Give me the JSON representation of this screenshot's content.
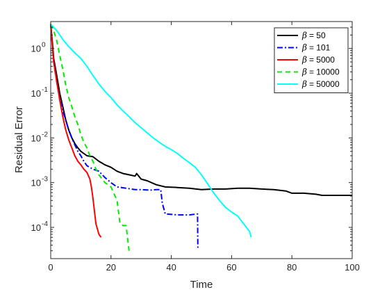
{
  "chart_data": {
    "type": "line",
    "xlabel": "Time",
    "ylabel": "Residual Error",
    "xlim": [
      0,
      100
    ],
    "ylim": [
      2e-05,
      4
    ],
    "yscale": "log",
    "grid": false,
    "legend_position": "top-right",
    "x_ticks": [
      0,
      20,
      40,
      60,
      80,
      100
    ],
    "y_ticks": [
      {
        "value": 0.0001,
        "base": "10",
        "exp": "-4"
      },
      {
        "value": 0.001,
        "base": "10",
        "exp": "-3"
      },
      {
        "value": 0.01,
        "base": "10",
        "exp": "-2"
      },
      {
        "value": 0.1,
        "base": "10",
        "exp": "-1"
      },
      {
        "value": 1,
        "base": "10",
        "exp": "0"
      }
    ],
    "series": [
      {
        "name": "β = 50",
        "legend_symbol": "β",
        "legend_value": "= 50",
        "color": "#000000",
        "dash": "",
        "points": [
          [
            0,
            3.5
          ],
          [
            0.5,
            1.5
          ],
          [
            1,
            0.6
          ],
          [
            2,
            0.25
          ],
          [
            3,
            0.1
          ],
          [
            4,
            0.05
          ],
          [
            5,
            0.025
          ],
          [
            6,
            0.015
          ],
          [
            7,
            0.01
          ],
          [
            8,
            0.0075
          ],
          [
            9,
            0.006
          ],
          [
            10,
            0.005
          ],
          [
            12,
            0.004
          ],
          [
            14,
            0.0038
          ],
          [
            16,
            0.003
          ],
          [
            18,
            0.0025
          ],
          [
            20,
            0.0022
          ],
          [
            22,
            0.0018
          ],
          [
            24,
            0.0016
          ],
          [
            26,
            0.0015
          ],
          [
            28,
            0.0014
          ],
          [
            28.5,
            0.0016
          ],
          [
            30,
            0.0012
          ],
          [
            32,
            0.0011
          ],
          [
            35,
            0.0009
          ],
          [
            38,
            0.0008
          ],
          [
            42,
            0.00078
          ],
          [
            46,
            0.00075
          ],
          [
            50,
            0.0007
          ],
          [
            54,
            0.00072
          ],
          [
            58,
            0.00072
          ],
          [
            62,
            0.00075
          ],
          [
            66,
            0.00075
          ],
          [
            70,
            0.00072
          ],
          [
            74,
            0.0007
          ],
          [
            78,
            0.00065
          ],
          [
            80,
            0.00058
          ],
          [
            84,
            0.00058
          ],
          [
            88,
            0.00055
          ],
          [
            90,
            0.00052
          ],
          [
            95,
            0.00052
          ],
          [
            100,
            0.00052
          ]
        ]
      },
      {
        "name": "β = 101",
        "legend_symbol": "β",
        "legend_value": "= 101",
        "color": "#0000ff",
        "dash": "8,3,2,3",
        "points": [
          [
            0,
            3.5
          ],
          [
            0.5,
            1.2
          ],
          [
            1,
            0.5
          ],
          [
            2,
            0.18
          ],
          [
            3,
            0.08
          ],
          [
            4,
            0.04
          ],
          [
            5,
            0.025
          ],
          [
            6,
            0.015
          ],
          [
            7,
            0.01
          ],
          [
            8,
            0.007
          ],
          [
            9,
            0.005
          ],
          [
            10,
            0.004
          ],
          [
            11,
            0.003
          ],
          [
            12,
            0.0024
          ],
          [
            14,
            0.002
          ],
          [
            16,
            0.0018
          ],
          [
            18,
            0.0013
          ],
          [
            20,
            0.001
          ],
          [
            22,
            0.0008
          ],
          [
            25,
            0.00075
          ],
          [
            28,
            0.0007
          ],
          [
            30,
            0.0007
          ],
          [
            33,
            0.00068
          ],
          [
            35,
            0.0007
          ],
          [
            36.5,
            0.0007
          ],
          [
            37,
            0.00035
          ],
          [
            38,
            0.0002
          ],
          [
            42,
            0.00019
          ],
          [
            46,
            0.00019
          ],
          [
            48.7,
            0.0002
          ],
          [
            48.8,
            3.5e-05
          ]
        ]
      },
      {
        "name": "β = 5000",
        "legend_symbol": "β",
        "legend_value": "= 5000",
        "color": "#ff0000",
        "dash": "",
        "points": [
          [
            0,
            3.5
          ],
          [
            0.5,
            1.2
          ],
          [
            1,
            0.5
          ],
          [
            2,
            0.18
          ],
          [
            3,
            0.07
          ],
          [
            4,
            0.03
          ],
          [
            5,
            0.015
          ],
          [
            6,
            0.009
          ],
          [
            7,
            0.006
          ],
          [
            8,
            0.004
          ],
          [
            9,
            0.003
          ],
          [
            10,
            0.0025
          ],
          [
            11,
            0.002
          ],
          [
            12,
            0.0017
          ],
          [
            13,
            0.0012
          ],
          [
            13.5,
            0.0008
          ],
          [
            14,
            0.00045
          ],
          [
            15,
            0.00012
          ],
          [
            16,
            7e-05
          ],
          [
            16.7,
            6e-05
          ]
        ]
      },
      {
        "name": "β = 10000",
        "legend_symbol": "β",
        "legend_value": "= 10000",
        "color": "#00ee00",
        "dash": "7,5",
        "points": [
          [
            0,
            3.5
          ],
          [
            1,
            2.5
          ],
          [
            2,
            1.5
          ],
          [
            3,
            0.7
          ],
          [
            4,
            0.35
          ],
          [
            5,
            0.15
          ],
          [
            6,
            0.08
          ],
          [
            7,
            0.05
          ],
          [
            8,
            0.03
          ],
          [
            9,
            0.02
          ],
          [
            10,
            0.012
          ],
          [
            11,
            0.008
          ],
          [
            12,
            0.006
          ],
          [
            13,
            0.004
          ],
          [
            14,
            0.003
          ],
          [
            15,
            0.002
          ],
          [
            16,
            0.0015
          ],
          [
            18,
            0.001
          ],
          [
            20,
            0.0008
          ],
          [
            22,
            0.0004
          ],
          [
            23,
            0.00012
          ],
          [
            24,
            0.00011
          ],
          [
            25,
            0.00011
          ],
          [
            26,
            3e-05
          ]
        ]
      },
      {
        "name": "β = 50000",
        "legend_symbol": "β",
        "legend_value": "= 50000",
        "color": "#00ffff",
        "dash": "",
        "points": [
          [
            0,
            3.5
          ],
          [
            2,
            2.5
          ],
          [
            4,
            1.6
          ],
          [
            6,
            1.1
          ],
          [
            8,
            0.8
          ],
          [
            10,
            0.6
          ],
          [
            12,
            0.4
          ],
          [
            14,
            0.25
          ],
          [
            16,
            0.16
          ],
          [
            18,
            0.11
          ],
          [
            20,
            0.08
          ],
          [
            22,
            0.055
          ],
          [
            24,
            0.04
          ],
          [
            26,
            0.03
          ],
          [
            28,
            0.022
          ],
          [
            30,
            0.017
          ],
          [
            32,
            0.013
          ],
          [
            34,
            0.01
          ],
          [
            36,
            0.008
          ],
          [
            38,
            0.0065
          ],
          [
            40,
            0.0055
          ],
          [
            42,
            0.0045
          ],
          [
            44,
            0.0035
          ],
          [
            46,
            0.0028
          ],
          [
            48,
            0.0022
          ],
          [
            50,
            0.0015
          ],
          [
            52,
            0.00095
          ],
          [
            54,
            0.0006
          ],
          [
            56,
            0.0004
          ],
          [
            58,
            0.00028
          ],
          [
            60,
            0.00022
          ],
          [
            62,
            0.00018
          ],
          [
            64,
            0.00012
          ],
          [
            66,
            8e-05
          ],
          [
            66.5,
            6e-05
          ]
        ]
      }
    ]
  }
}
